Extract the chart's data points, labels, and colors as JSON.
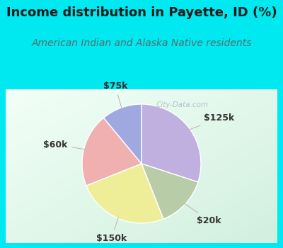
{
  "title": "Income distribution in Payette, ID (%)",
  "subtitle": "American Indian and Alaska Native residents",
  "title_fontsize": 13,
  "subtitle_fontsize": 10,
  "slices": [
    {
      "label": "$125k",
      "value": 30,
      "color": "#c0b0e0"
    },
    {
      "label": "$20k",
      "value": 14,
      "color": "#b8cca8"
    },
    {
      "label": "$150k",
      "value": 25,
      "color": "#eeee99"
    },
    {
      "label": "$60k",
      "value": 20,
      "color": "#f0b0b0"
    },
    {
      "label": "$75k",
      "value": 11,
      "color": "#a0a8e0"
    }
  ],
  "label_color": "#333333",
  "label_fontsize": 9,
  "background_cyan": "#00e8f0",
  "background_chart_topleft": "#e8f8f0",
  "background_chart_bottomright": "#c8e8d8",
  "watermark": "City-Data.com"
}
